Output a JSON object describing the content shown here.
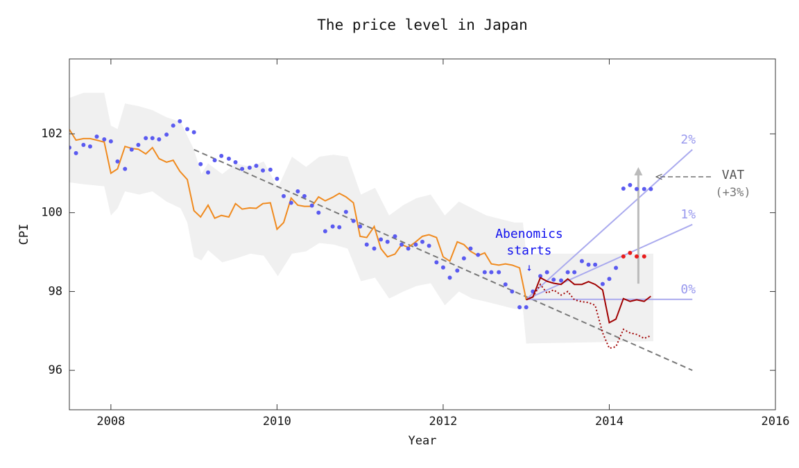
{
  "chart_data": {
    "type": "line",
    "title": "The price level in Japan",
    "x_label": "Year",
    "y_label": "CPI",
    "xlim": [
      2007.5,
      2016
    ],
    "ylim": [
      95,
      103.9
    ],
    "xticks": [
      2008,
      2010,
      2012,
      2014,
      2016
    ],
    "yticks": [
      96,
      98,
      100,
      102
    ],
    "band": {
      "color": "#f0f0f0",
      "x": [
        2007.5,
        2007.67,
        2007.92,
        2008.0,
        2008.08,
        2008.17,
        2008.34,
        2008.5,
        2008.67,
        2008.84,
        2008.92,
        2009.0,
        2009.09,
        2009.17,
        2009.34,
        2009.51,
        2009.68,
        2009.84,
        2010.01,
        2010.18,
        2010.35,
        2010.51,
        2010.68,
        2010.85,
        2011.01,
        2011.18,
        2011.35,
        2011.52,
        2011.68,
        2011.85,
        2012.02,
        2012.19,
        2012.35,
        2012.52,
        2012.69,
        2012.86,
        2012.96,
        2013.0,
        2014.53
      ],
      "upper": [
        102.91,
        103.04,
        103.04,
        102.21,
        102.12,
        102.77,
        102.7,
        102.6,
        102.42,
        102.3,
        101.95,
        101.6,
        100.98,
        101.25,
        100.98,
        101.25,
        101.16,
        101.3,
        100.63,
        101.42,
        101.16,
        101.42,
        101.47,
        101.42,
        100.46,
        100.63,
        99.93,
        100.19,
        100.37,
        100.46,
        99.93,
        100.28,
        100.11,
        99.93,
        99.84,
        99.75,
        99.75,
        98.96,
        98.96
      ],
      "lower": [
        100.77,
        100.72,
        100.67,
        99.93,
        100.11,
        100.54,
        100.46,
        100.54,
        100.28,
        100.11,
        99.75,
        98.88,
        98.79,
        99.05,
        98.74,
        98.84,
        98.96,
        98.91,
        98.39,
        98.96,
        99.02,
        99.23,
        99.19,
        99.09,
        98.26,
        98.35,
        97.82,
        98.0,
        98.14,
        98.21,
        97.65,
        98.0,
        97.82,
        97.74,
        97.65,
        97.56,
        97.56,
        96.68,
        96.74
      ]
    },
    "trend": {
      "color": "#777777",
      "x": [
        2009,
        2015
      ],
      "y": [
        101.6,
        96.0
      ]
    },
    "projections": [
      {
        "label": "0%",
        "color": "#aaaaee",
        "x": [
          2013.0,
          2015
        ],
        "y": [
          97.8,
          97.8
        ]
      },
      {
        "label": "1%",
        "color": "#aaaaee",
        "x": [
          2013.0,
          2015
        ],
        "y": [
          97.8,
          99.7
        ]
      },
      {
        "label": "2%",
        "color": "#aaaaee",
        "x": [
          2013.0,
          2015
        ],
        "y": [
          97.8,
          101.6
        ]
      }
    ],
    "series": [
      {
        "kind": "line",
        "dashed": false,
        "color": "#f08a1e",
        "x": [
          2007.5,
          2007.58,
          2007.67,
          2007.75,
          2007.83,
          2007.92,
          2008,
          2008.08,
          2008.17,
          2008.25,
          2008.33,
          2008.42,
          2008.5,
          2008.58,
          2008.67,
          2008.75,
          2008.83,
          2008.92,
          2009,
          2009.08,
          2009.17,
          2009.25,
          2009.33,
          2009.42,
          2009.5,
          2009.58,
          2009.67,
          2009.75,
          2009.83,
          2009.92,
          2010,
          2010.08,
          2010.17,
          2010.25,
          2010.33,
          2010.42,
          2010.5,
          2010.58,
          2010.67,
          2010.75,
          2010.83,
          2010.92,
          2011,
          2011.08,
          2011.17,
          2011.25,
          2011.33,
          2011.42,
          2011.5,
          2011.58,
          2011.67,
          2011.75,
          2011.83,
          2011.92,
          2012,
          2012.08,
          2012.17,
          2012.25,
          2012.33,
          2012.42,
          2012.5,
          2012.58,
          2012.67,
          2012.75,
          2012.83,
          2012.92,
          2013
        ],
        "values": [
          102.11,
          101.84,
          101.88,
          101.88,
          101.84,
          101.79,
          101.0,
          101.11,
          101.68,
          101.63,
          101.61,
          101.49,
          101.65,
          101.37,
          101.28,
          101.33,
          101.05,
          100.84,
          100.05,
          99.89,
          100.19,
          99.86,
          99.93,
          99.89,
          100.23,
          100.09,
          100.12,
          100.11,
          100.23,
          100.25,
          99.58,
          99.75,
          100.37,
          100.19,
          100.16,
          100.16,
          100.4,
          100.3,
          100.39,
          100.49,
          100.4,
          100.25,
          99.4,
          99.37,
          99.65,
          99.09,
          98.88,
          98.95,
          99.19,
          99.12,
          99.26,
          99.4,
          99.44,
          99.37,
          98.88,
          98.77,
          99.26,
          99.19,
          99.02,
          98.91,
          98.98,
          98.7,
          98.67,
          98.7,
          98.67,
          98.6,
          97.79
        ]
      },
      {
        "kind": "points",
        "color": "#5a5af0",
        "x": [
          2007.5,
          2007.58,
          2007.67,
          2007.75,
          2007.83,
          2007.92,
          2008,
          2008.08,
          2008.17,
          2008.25,
          2008.33,
          2008.42,
          2008.5,
          2008.58,
          2008.67,
          2008.75,
          2008.83,
          2008.92,
          2009,
          2009.08,
          2009.17,
          2009.25,
          2009.33,
          2009.42,
          2009.5,
          2009.58,
          2009.67,
          2009.75,
          2009.83,
          2009.92,
          2010,
          2010.08,
          2010.17,
          2010.25,
          2010.33,
          2010.42,
          2010.5,
          2010.58,
          2010.67,
          2010.75,
          2010.83,
          2010.92,
          2011,
          2011.08,
          2011.17,
          2011.25,
          2011.33,
          2011.42,
          2011.5,
          2011.58,
          2011.67,
          2011.75,
          2011.83,
          2011.92,
          2012,
          2012.08,
          2012.17,
          2012.25,
          2012.33,
          2012.42,
          2012.5,
          2012.58,
          2012.67,
          2012.75,
          2012.83,
          2012.92,
          2013,
          2013.08,
          2013.17,
          2013.25,
          2013.33,
          2013.42,
          2013.5,
          2013.58,
          2013.67,
          2013.75,
          2013.83,
          2013.92,
          2014,
          2014.08,
          2014.17,
          2014.25,
          2014.33,
          2014.42,
          2014.5
        ],
        "values": [
          101.65,
          101.51,
          101.72,
          101.68,
          101.93,
          101.86,
          101.81,
          101.3,
          101.11,
          101.6,
          101.72,
          101.89,
          101.89,
          101.86,
          101.98,
          102.21,
          102.32,
          102.12,
          102.04,
          101.23,
          101.02,
          101.33,
          101.44,
          101.37,
          101.28,
          101.11,
          101.14,
          101.19,
          101.07,
          101.09,
          100.86,
          100.42,
          100.25,
          100.54,
          100.42,
          100.18,
          100.0,
          99.53,
          99.65,
          99.63,
          100.02,
          99.79,
          99.65,
          99.19,
          99.09,
          99.32,
          99.26,
          99.4,
          99.19,
          99.09,
          99.19,
          99.26,
          99.16,
          98.74,
          98.61,
          98.35,
          98.53,
          98.84,
          99.09,
          98.93,
          98.49,
          98.49,
          98.49,
          98.18,
          98.0,
          97.6,
          97.6,
          98.0,
          98.39,
          98.49,
          98.3,
          98.28,
          98.49,
          98.49,
          98.77,
          98.68,
          98.68,
          98.19,
          98.32,
          98.6,
          100.61,
          100.7,
          100.6,
          100.6,
          100.6
        ]
      },
      {
        "kind": "line",
        "dashed": false,
        "color": "#a00000",
        "x": [
          2013,
          2013.08,
          2013.17,
          2013.25,
          2013.33,
          2013.42,
          2013.5,
          2013.58,
          2013.67,
          2013.75,
          2013.83,
          2013.92,
          2014,
          2014.08,
          2014.17,
          2014.25,
          2014.33,
          2014.42,
          2014.5
        ],
        "values": [
          97.79,
          97.86,
          98.35,
          98.26,
          98.21,
          98.18,
          98.32,
          98.18,
          98.18,
          98.25,
          98.18,
          98.04,
          97.21,
          97.3,
          97.82,
          97.75,
          97.79,
          97.75,
          97.88
        ]
      },
      {
        "kind": "line",
        "dashed": true,
        "color": "#a00000",
        "x": [
          2013,
          2013.08,
          2013.17,
          2013.25,
          2013.33,
          2013.42,
          2013.5,
          2013.58,
          2013.67,
          2013.75,
          2013.83,
          2013.92,
          2014,
          2014.08,
          2014.17,
          2014.25,
          2014.33,
          2014.42,
          2014.5
        ],
        "values": [
          97.79,
          97.86,
          98.18,
          97.96,
          98.04,
          97.91,
          98.0,
          97.79,
          97.74,
          97.72,
          97.65,
          96.95,
          96.56,
          96.6,
          97.04,
          96.95,
          96.91,
          96.81,
          96.88
        ]
      },
      {
        "kind": "points",
        "color": "#e81c1c",
        "x": [
          2014.17,
          2014.25,
          2014.33,
          2014.42
        ],
        "values": [
          98.89,
          98.98,
          98.89,
          98.89
        ]
      }
    ],
    "annotations": {
      "abenomics": [
        "Abenomics",
        "starts",
        "↓"
      ],
      "vat": [
        "VAT",
        "(+3%)"
      ]
    }
  }
}
